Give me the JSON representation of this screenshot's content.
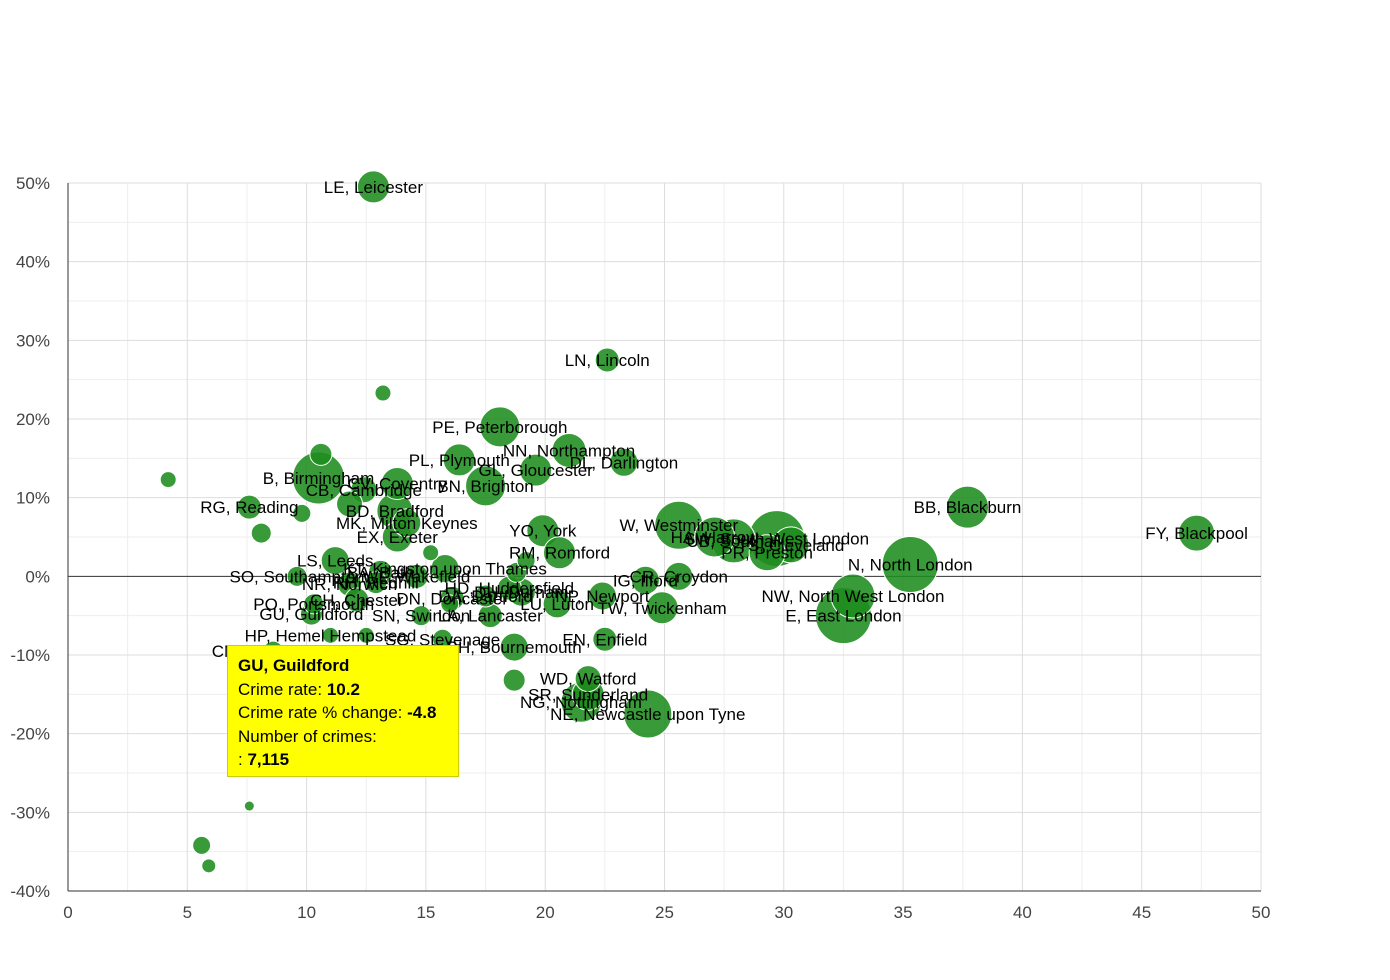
{
  "colors": {
    "bubble": "#1c8c1c",
    "grid": "#dddddd",
    "minor_grid": "#eeeeee",
    "zero_line": "#333333",
    "tooltip_bg": "#ffff00"
  },
  "chart_data": {
    "type": "scatter",
    "title": "",
    "xlabel": "",
    "ylabel": "",
    "xlim": [
      0,
      50
    ],
    "ylim": [
      -40,
      50
    ],
    "x_ticks": [
      "0",
      "5",
      "10",
      "15",
      "20",
      "25",
      "30",
      "35",
      "40",
      "45",
      "50"
    ],
    "y_ticks": [
      "50%",
      "40%",
      "30%",
      "20%",
      "10%",
      "0%",
      "-10%",
      "-20%",
      "-30%",
      "-40%"
    ],
    "points": [
      {
        "label": "LE, Leicester",
        "x": 12.8,
        "y": 49.5,
        "r": 16
      },
      {
        "label": "LN, Lincoln",
        "x": 22.6,
        "y": 27.5,
        "r": 12
      },
      {
        "label": "",
        "x": 13.2,
        "y": 23.3,
        "r": 8
      },
      {
        "label": "PE, Peterborough",
        "x": 18.1,
        "y": 19.0,
        "r": 20
      },
      {
        "label": "NN, Northampton",
        "x": 21.0,
        "y": 16.0,
        "r": 17
      },
      {
        "label": "DL, Darlington",
        "x": 23.3,
        "y": 14.5,
        "r": 14
      },
      {
        "label": "PL, Plymouth",
        "x": 16.4,
        "y": 14.8,
        "r": 16
      },
      {
        "label": "GL, Gloucester",
        "x": 19.6,
        "y": 13.5,
        "r": 16
      },
      {
        "label": "",
        "x": 4.2,
        "y": 12.3,
        "r": 8
      },
      {
        "label": "",
        "x": 10.6,
        "y": 15.5,
        "r": 11
      },
      {
        "label": "B, Birmingham",
        "x": 10.5,
        "y": 12.5,
        "r": 26
      },
      {
        "label": "CV, Coventry",
        "x": 13.8,
        "y": 11.8,
        "r": 16
      },
      {
        "label": "CB, Cambridge",
        "x": 12.4,
        "y": 11.0,
        "r": 13
      },
      {
        "label": "BN, Brighton",
        "x": 17.5,
        "y": 11.5,
        "r": 20
      },
      {
        "label": "RG, Reading",
        "x": 7.6,
        "y": 8.8,
        "r": 12
      },
      {
        "label": "",
        "x": 11.8,
        "y": 9.2,
        "r": 13
      },
      {
        "label": "BD, Bradford",
        "x": 13.7,
        "y": 8.3,
        "r": 18
      },
      {
        "label": "",
        "x": 9.8,
        "y": 8.0,
        "r": 9
      },
      {
        "label": "MK, Milton Keynes",
        "x": 14.2,
        "y": 6.8,
        "r": 14
      },
      {
        "label": "BB, Blackburn",
        "x": 37.7,
        "y": 8.8,
        "r": 21
      },
      {
        "label": "FY, Blackpool",
        "x": 47.3,
        "y": 5.5,
        "r": 18
      },
      {
        "label": "",
        "x": 8.1,
        "y": 5.5,
        "r": 10
      },
      {
        "label": "YO, York",
        "x": 19.9,
        "y": 5.8,
        "r": 16
      },
      {
        "label": "EX, Exeter",
        "x": 13.8,
        "y": 5.0,
        "r": 15
      },
      {
        "label": "W, Westminster",
        "x": 25.6,
        "y": 6.5,
        "r": 24
      },
      {
        "label": "HA, Harrow",
        "x": 27.1,
        "y": 5.0,
        "r": 20
      },
      {
        "label": "UB, Southall",
        "x": 27.9,
        "y": 4.5,
        "r": 22
      },
      {
        "label": "SW, South West London",
        "x": 29.7,
        "y": 4.8,
        "r": 28
      },
      {
        "label": "TS, Cleveland",
        "x": 30.3,
        "y": 4.0,
        "r": 18
      },
      {
        "label": "PR, Preston",
        "x": 29.3,
        "y": 3.0,
        "r": 18
      },
      {
        "label": "RM, Romford",
        "x": 20.6,
        "y": 3.0,
        "r": 16
      },
      {
        "label": "N, North London",
        "x": 35.3,
        "y": 1.5,
        "r": 28
      },
      {
        "label": "LS, Leeds",
        "x": 11.2,
        "y": 2.0,
        "r": 14
      },
      {
        "label": "KT, Kingston upon Thames",
        "x": 15.8,
        "y": 1.0,
        "r": 14
      },
      {
        "label": "",
        "x": 15.2,
        "y": 3.0,
        "r": 8
      },
      {
        "label": "BA, Bath",
        "x": 13.1,
        "y": 0.5,
        "r": 12
      },
      {
        "label": "WF, Wakefield",
        "x": 14.6,
        "y": 0.0,
        "r": 12
      },
      {
        "label": "SO, Southampton",
        "x": 9.6,
        "y": 0.0,
        "r": 10
      },
      {
        "label": "",
        "x": 19.2,
        "y": 2.0,
        "r": 9
      },
      {
        "label": "",
        "x": 18.8,
        "y": 0.5,
        "r": 10
      },
      {
        "label": "IG, Ilford",
        "x": 24.2,
        "y": -0.5,
        "r": 14
      },
      {
        "label": "CR, Croydon",
        "x": 25.6,
        "y": 0.0,
        "r": 14
      },
      {
        "label": "NR, Norwich",
        "x": 11.8,
        "y": -1.0,
        "r": 12
      },
      {
        "label": "RH, Redhill",
        "x": 12.9,
        "y": -0.8,
        "r": 11
      },
      {
        "label": "HD, Huddersfield",
        "x": 18.5,
        "y": -1.5,
        "r": 12
      },
      {
        "label": "DH, Durham",
        "x": 19.0,
        "y": -2.0,
        "r": 14
      },
      {
        "label": "NP, Newport",
        "x": 22.4,
        "y": -2.5,
        "r": 14
      },
      {
        "label": "CH, Chester",
        "x": 12.1,
        "y": -3.0,
        "r": 12
      },
      {
        "label": "DN, Doncaster",
        "x": 16.1,
        "y": -2.8,
        "r": 12
      },
      {
        "label": "DA, Dartford",
        "x": 17.5,
        "y": -2.5,
        "r": 11
      },
      {
        "label": "TW, Twickenham",
        "x": 24.9,
        "y": -4.0,
        "r": 16
      },
      {
        "label": "NW, North West London",
        "x": 32.9,
        "y": -2.5,
        "r": 22
      },
      {
        "label": "E, East London",
        "x": 32.5,
        "y": -5.0,
        "r": 28
      },
      {
        "label": "PO, Portsmouth",
        "x": 10.3,
        "y": -3.5,
        "r": 10
      },
      {
        "label": "GU, Guildford",
        "x": 10.2,
        "y": -4.8,
        "r": 11
      },
      {
        "label": "LA, Lancaster",
        "x": 17.7,
        "y": -5.0,
        "r": 12
      },
      {
        "label": "LU, Luton",
        "x": 20.5,
        "y": -3.5,
        "r": 14
      },
      {
        "label": "SN, Swindon",
        "x": 14.8,
        "y": -5.0,
        "r": 10
      },
      {
        "label": "",
        "x": 16.0,
        "y": -3.5,
        "r": 9
      },
      {
        "label": "EN, Enfield",
        "x": 22.5,
        "y": -8.0,
        "r": 12
      },
      {
        "label": "HP, Hemel Hempstead",
        "x": 11.0,
        "y": -7.5,
        "r": 8
      },
      {
        "label": "SG, Stevenage",
        "x": 15.7,
        "y": -8.0,
        "r": 10
      },
      {
        "label": "BH, Bournemouth",
        "x": 18.7,
        "y": -9.0,
        "r": 14
      },
      {
        "label": "CM, Chelmsford",
        "x": 8.6,
        "y": -9.5,
        "r": 10
      },
      {
        "label": "",
        "x": 12.5,
        "y": -7.5,
        "r": 8
      },
      {
        "label": "WD, Watford",
        "x": 21.8,
        "y": -13.0,
        "r": 13
      },
      {
        "label": "",
        "x": 18.7,
        "y": -13.2,
        "r": 11
      },
      {
        "label": "SR, Sunderland",
        "x": 21.8,
        "y": -15.0,
        "r": 16
      },
      {
        "label": "NG, Nottingham",
        "x": 21.5,
        "y": -16.0,
        "r": 20
      },
      {
        "label": "NE, Newcastle upon Tyne",
        "x": 24.3,
        "y": -17.5,
        "r": 24
      },
      {
        "label": "",
        "x": 7.6,
        "y": -29.2,
        "r": 5
      },
      {
        "label": "",
        "x": 5.6,
        "y": -34.2,
        "r": 9
      },
      {
        "label": "",
        "x": 5.9,
        "y": -36.8,
        "r": 7
      }
    ]
  },
  "tooltip": {
    "title": "GU, Guildford",
    "crime_rate_label": "Crime rate:",
    "crime_rate_value": "10.2",
    "change_label": "Crime rate % change:",
    "change_value": "-4.8",
    "crimes_label": "Number of crimes:",
    "crimes_prefix": ":",
    "crimes_value": "7,115"
  }
}
